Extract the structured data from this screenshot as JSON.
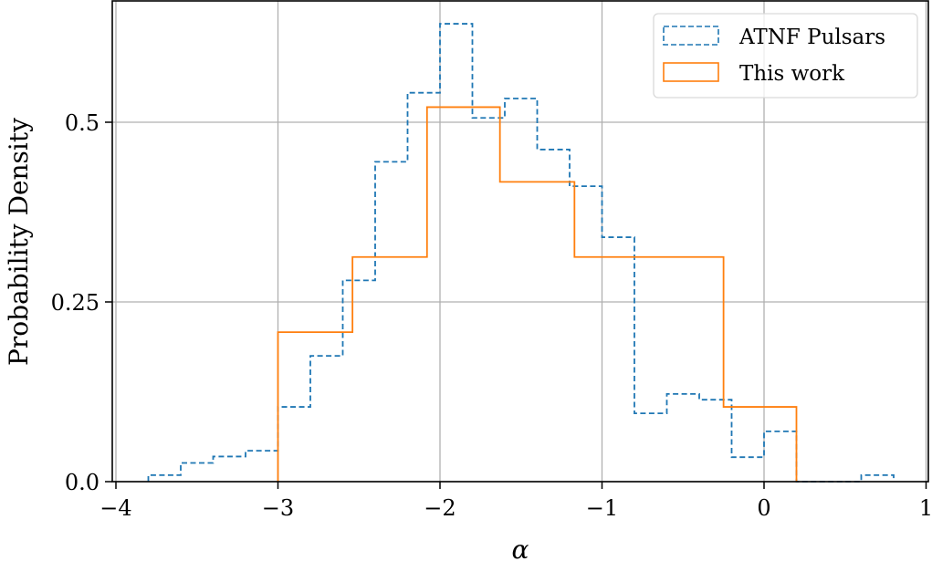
{
  "chart_data": {
    "type": "histogram",
    "title": "",
    "xlabel": "α",
    "ylabel": "Probability Density",
    "xlim": [
      -4.05,
      1.01
    ],
    "ylim": [
      0.0,
      0.669
    ],
    "grid": true,
    "legend_position": "upper right",
    "x_ticks": [
      -4,
      -3,
      -2,
      -1,
      0,
      1
    ],
    "x_tick_labels": [
      "−4",
      "−3",
      "−2",
      "−1",
      "0",
      "1"
    ],
    "y_ticks": [
      0.0,
      0.25,
      0.5
    ],
    "y_tick_labels": [
      "0.0",
      "0.25",
      "0.5"
    ],
    "series": [
      {
        "name": "ATNF Pulsars",
        "style": "step, dashed",
        "color": "#1f77b4",
        "bin_edges": [
          -3.8,
          -3.6,
          -3.4,
          -3.2,
          -3.0,
          -2.8,
          -2.6,
          -2.4,
          -2.2,
          -2.0,
          -1.8,
          -1.6,
          -1.4,
          -1.2,
          -1.0,
          -0.8,
          -0.6,
          -0.4,
          -0.2,
          0.0,
          0.2,
          0.4,
          0.6,
          0.8
        ],
        "values": [
          0.009,
          0.026,
          0.035,
          0.043,
          0.104,
          0.175,
          0.28,
          0.445,
          0.541,
          0.637,
          0.506,
          0.533,
          0.462,
          0.411,
          0.34,
          0.095,
          0.122,
          0.114,
          0.034,
          0.07,
          0.0,
          0.0,
          0.009
        ]
      },
      {
        "name": "This work",
        "style": "step, solid",
        "color": "#ff7f0e",
        "bin_edges": [
          -3.0,
          -2.54,
          -2.08,
          -1.63,
          -1.17,
          -0.71,
          -0.25,
          0.2
        ],
        "values": [
          0.208,
          0.3125,
          0.521,
          0.417,
          0.3125,
          0.3125,
          0.104
        ]
      }
    ]
  },
  "legend": {
    "items": [
      {
        "label": "ATNF Pulsars",
        "color": "#1f77b4",
        "style": "dashed"
      },
      {
        "label": "This work",
        "color": "#ff7f0e",
        "style": "solid"
      }
    ]
  },
  "colors": {
    "grid": "#b0b0b0",
    "axis": "#000000",
    "series_blue": "#1f77b4",
    "series_orange": "#ff7f0e"
  }
}
